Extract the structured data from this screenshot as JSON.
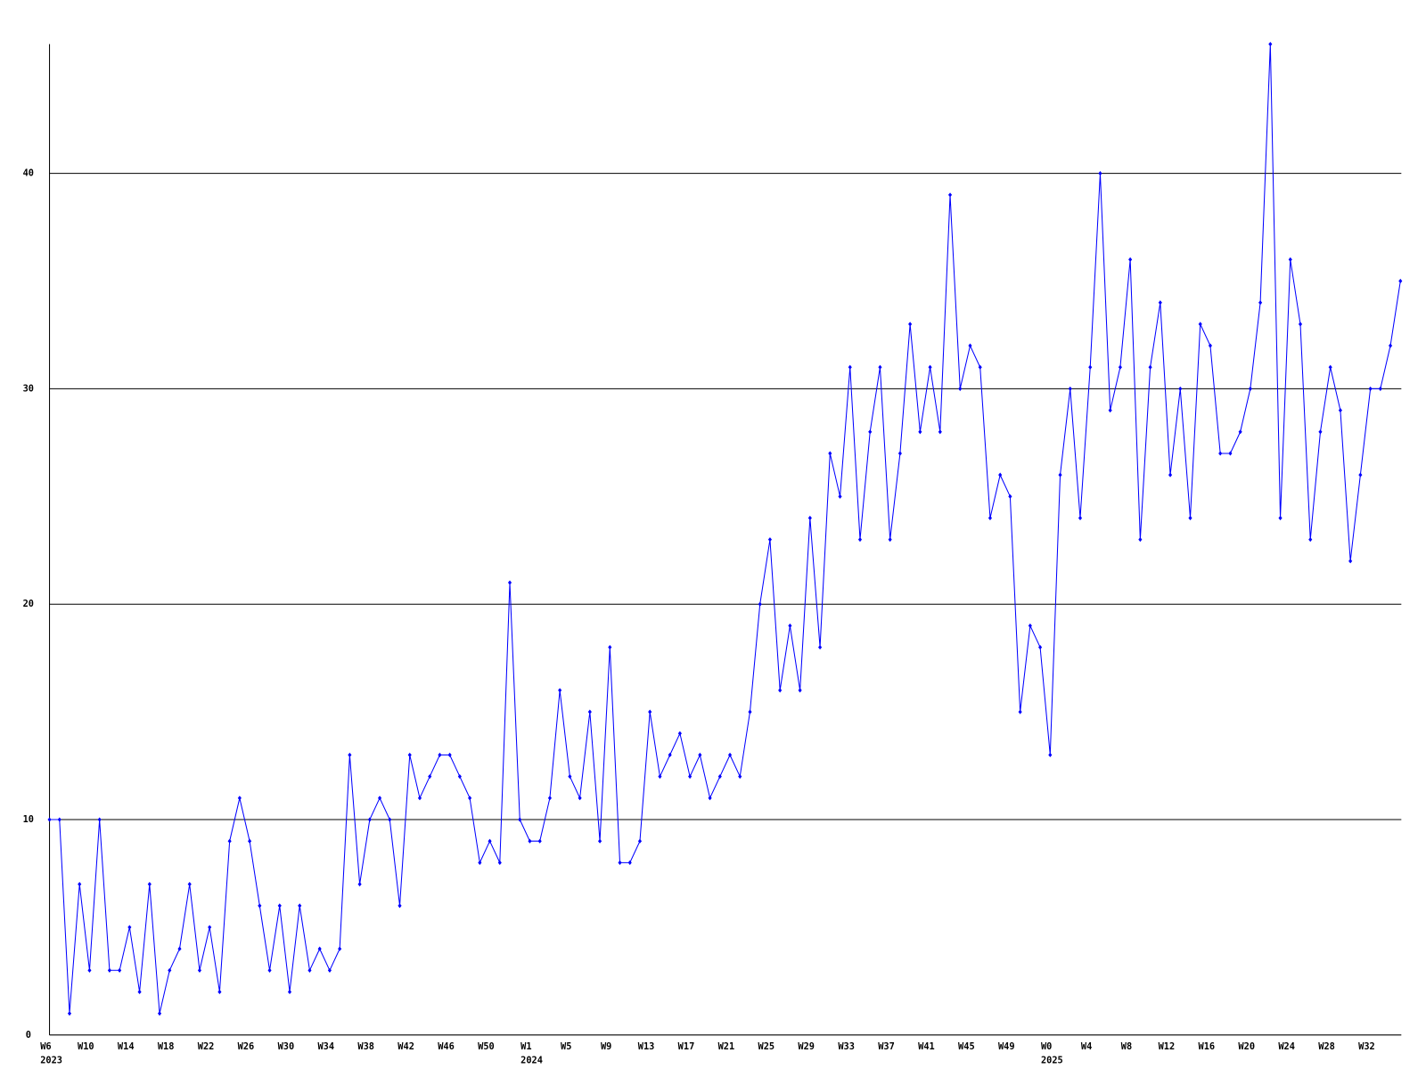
{
  "chart_data": {
    "type": "line",
    "categories": [
      "W6",
      null,
      null,
      null,
      "W10",
      null,
      null,
      null,
      "W14",
      null,
      null,
      null,
      "W18",
      null,
      null,
      null,
      "W22",
      null,
      null,
      null,
      "W26",
      null,
      null,
      null,
      "W30",
      null,
      null,
      null,
      "W34",
      null,
      null,
      null,
      "W38",
      null,
      null,
      null,
      "W42",
      null,
      null,
      null,
      "W46",
      null,
      null,
      null,
      "W50",
      null,
      null,
      null,
      "W1",
      null,
      null,
      null,
      "W5",
      null,
      null,
      null,
      "W9",
      null,
      null,
      null,
      "W13",
      null,
      null,
      null,
      "W17",
      null,
      null,
      null,
      "W21",
      null,
      null,
      null,
      "W25",
      null,
      null,
      null,
      "W29",
      null,
      null,
      null,
      "W33",
      null,
      null,
      null,
      "W37",
      null,
      null,
      null,
      "W41",
      null,
      null,
      null,
      "W45",
      null,
      null,
      null,
      "W49",
      null,
      null,
      null,
      "W0",
      null,
      null,
      null,
      "W4",
      null,
      null,
      null,
      "W8",
      null,
      null,
      null,
      "W12",
      null,
      null,
      null,
      "W16",
      null,
      null,
      null,
      "W20",
      null,
      null,
      null,
      "W24",
      null,
      null,
      null,
      "W28",
      null,
      null,
      null,
      "W32",
      null,
      null,
      null
    ],
    "years": [
      {
        "index": 0,
        "label": "2023"
      },
      {
        "index": 48,
        "label": "2024"
      },
      {
        "index": 100,
        "label": "2025"
      }
    ],
    "values": [
      10,
      10,
      1,
      7,
      3,
      10,
      3,
      3,
      5,
      2,
      7,
      1,
      3,
      4,
      7,
      3,
      5,
      2,
      9,
      11,
      9,
      6,
      3,
      6,
      2,
      6,
      3,
      4,
      3,
      4,
      13,
      7,
      10,
      11,
      10,
      6,
      13,
      11,
      12,
      13,
      13,
      12,
      11,
      8,
      9,
      8,
      21,
      10,
      9,
      9,
      11,
      16,
      12,
      11,
      15,
      9,
      18,
      8,
      8,
      9,
      15,
      12,
      13,
      14,
      12,
      13,
      11,
      12,
      13,
      12,
      15,
      20,
      23,
      16,
      19,
      16,
      24,
      18,
      27,
      25,
      31,
      23,
      28,
      31,
      23,
      27,
      33,
      28,
      31,
      28,
      39,
      30,
      32,
      31,
      24,
      26,
      25,
      15,
      19,
      18,
      13,
      26,
      30,
      24,
      31,
      40,
      29,
      31,
      36,
      23,
      31,
      34,
      26,
      30,
      24,
      33,
      32,
      27,
      27,
      28,
      30,
      34,
      46,
      24,
      36,
      33,
      23,
      28,
      31,
      29,
      22,
      26,
      30,
      30,
      32,
      35
    ],
    "color": "#0000ff",
    "ylim": [
      0,
      46
    ],
    "yticks": [
      0,
      10,
      20,
      30,
      40
    ],
    "grid": true
  }
}
